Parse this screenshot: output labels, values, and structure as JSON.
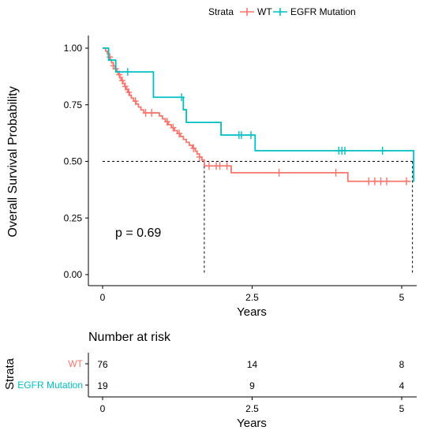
{
  "chart_data": {
    "type": "line",
    "subtype": "kaplan-meier",
    "legend": {
      "title": "Strata",
      "placement": "top",
      "entries": [
        "WT",
        "EGFR Mutation"
      ]
    },
    "xlabel": "Years",
    "ylabel": "Overall Survival Probability",
    "xlim": [
      0,
      5.2
    ],
    "ylim": [
      0,
      1
    ],
    "x_ticks": [
      "0",
      "2.5",
      "5"
    ],
    "y_ticks": [
      "0.00",
      "0.25",
      "0.50",
      "0.75",
      "1.00"
    ],
    "annotation": "p = 0.69",
    "median_line_y": 0.5,
    "median_times": [
      1.7,
      5.18
    ],
    "series": [
      {
        "name": "WT",
        "color": "#F8766D",
        "steps": [
          [
            0,
            1.0
          ],
          [
            0.05,
            0.987
          ],
          [
            0.08,
            0.974
          ],
          [
            0.1,
            0.961
          ],
          [
            0.13,
            0.948
          ],
          [
            0.15,
            0.935
          ],
          [
            0.18,
            0.922
          ],
          [
            0.21,
            0.909
          ],
          [
            0.24,
            0.896
          ],
          [
            0.26,
            0.883
          ],
          [
            0.29,
            0.87
          ],
          [
            0.31,
            0.857
          ],
          [
            0.34,
            0.844
          ],
          [
            0.37,
            0.831
          ],
          [
            0.4,
            0.818
          ],
          [
            0.42,
            0.805
          ],
          [
            0.45,
            0.792
          ],
          [
            0.48,
            0.779
          ],
          [
            0.52,
            0.766
          ],
          [
            0.56,
            0.753
          ],
          [
            0.6,
            0.74
          ],
          [
            0.64,
            0.727
          ],
          [
            0.69,
            0.714
          ],
          [
            0.95,
            0.701
          ],
          [
            1.0,
            0.688
          ],
          [
            1.05,
            0.675
          ],
          [
            1.1,
            0.662
          ],
          [
            1.15,
            0.649
          ],
          [
            1.2,
            0.636
          ],
          [
            1.25,
            0.623
          ],
          [
            1.3,
            0.61
          ],
          [
            1.35,
            0.597
          ],
          [
            1.4,
            0.584
          ],
          [
            1.45,
            0.571
          ],
          [
            1.5,
            0.558
          ],
          [
            1.55,
            0.545
          ],
          [
            1.58,
            0.532
          ],
          [
            1.62,
            0.519
          ],
          [
            1.66,
            0.506
          ],
          [
            1.7,
            0.48
          ],
          [
            2.15,
            0.45
          ],
          [
            4.1,
            0.412
          ]
        ],
        "end_x": 5.15,
        "censor_times": [
          0.12,
          0.18,
          0.22,
          0.28,
          0.33,
          0.38,
          0.44,
          0.55,
          0.72,
          0.82,
          1.08,
          1.18,
          1.28,
          1.52,
          1.62,
          1.78,
          1.9,
          1.96,
          2.08,
          2.95,
          3.9,
          4.45,
          4.55,
          4.65,
          4.75,
          5.08
        ]
      },
      {
        "name": "EGFR Mutation",
        "color": "#00BFC4",
        "steps": [
          [
            0,
            1.0
          ],
          [
            0.1,
            0.947
          ],
          [
            0.22,
            0.895
          ],
          [
            0.85,
            0.783
          ],
          [
            1.35,
            0.728
          ],
          [
            1.4,
            0.672
          ],
          [
            1.98,
            0.616
          ],
          [
            2.55,
            0.547
          ],
          [
            5.2,
            0.41
          ]
        ],
        "end_x": 5.2,
        "censor_times": [
          0.42,
          1.32,
          2.28,
          2.32,
          2.48,
          3.95,
          4.0,
          4.05,
          4.68
        ]
      }
    ],
    "risk_table": {
      "title": "Number at risk",
      "y_axis_label": "Strata",
      "x_axis_label": "Years",
      "times": [
        0,
        2.5,
        5
      ],
      "time_labels": [
        "0",
        "2.5",
        "5"
      ],
      "rows": [
        {
          "name": "WT",
          "color": "#F8766D",
          "counts": [
            "76",
            "14",
            "8"
          ]
        },
        {
          "name": "EGFR Mutation",
          "color": "#00BFC4",
          "counts": [
            "19",
            "9",
            "4"
          ]
        }
      ]
    }
  }
}
